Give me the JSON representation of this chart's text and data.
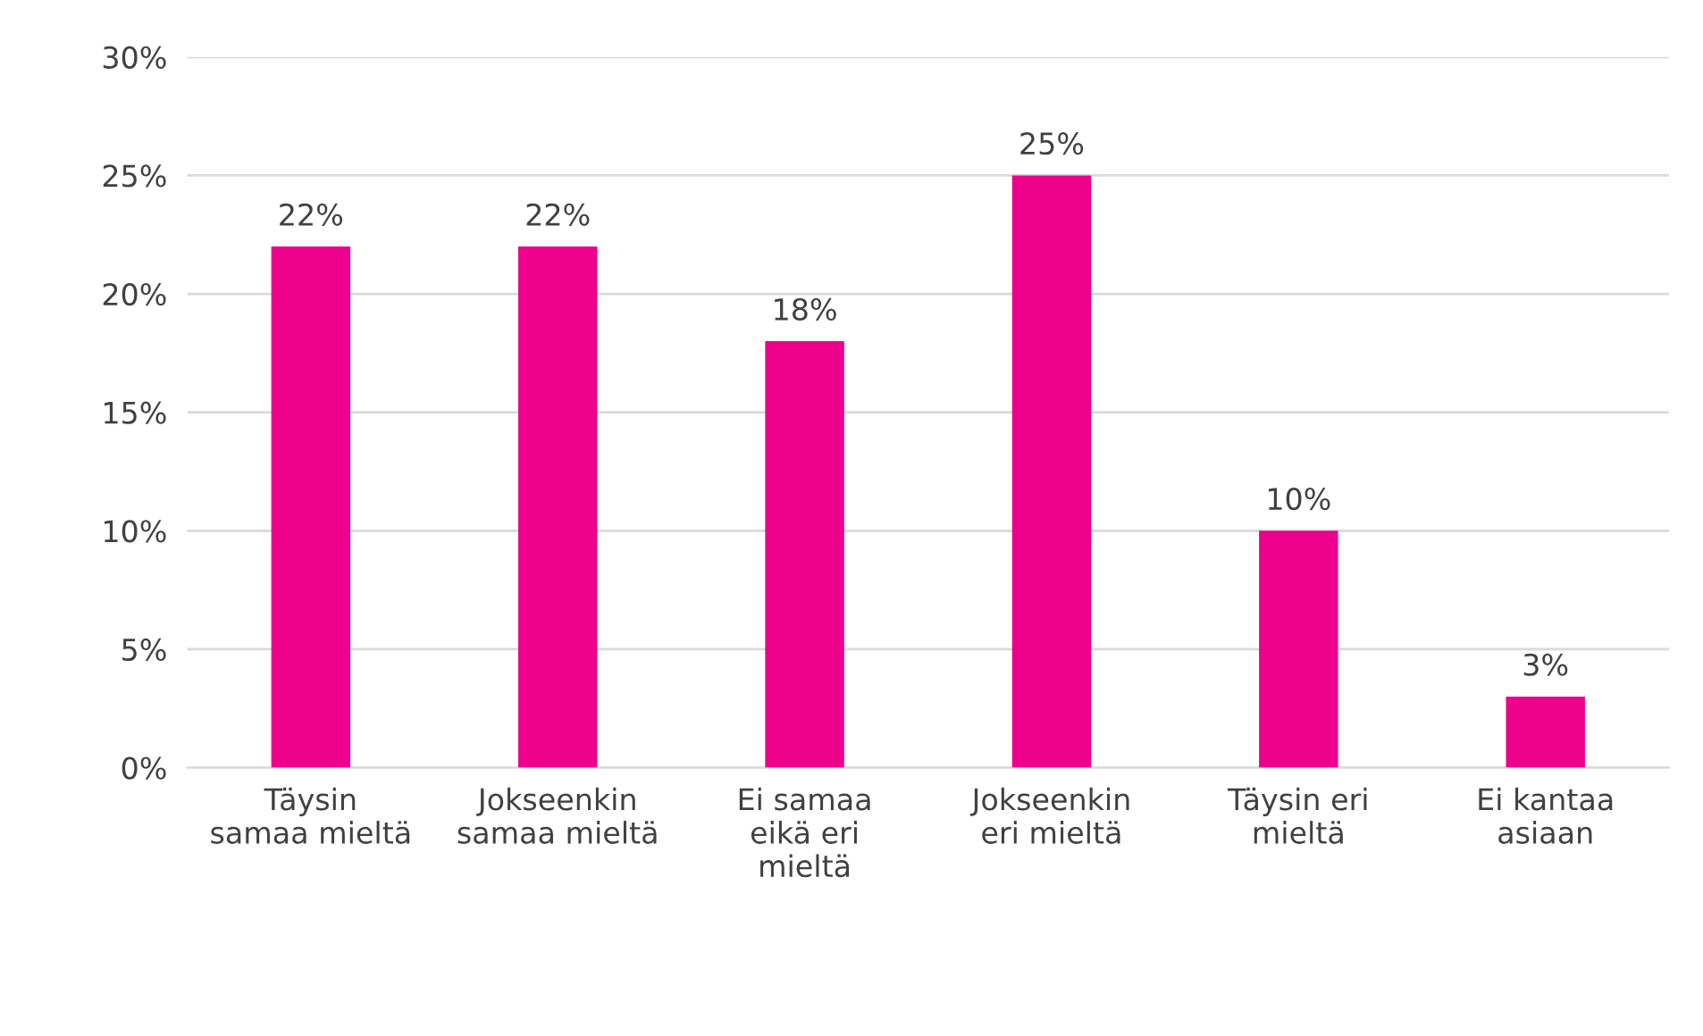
{
  "chart_data": {
    "type": "bar",
    "categories": [
      "Täysin\nsamaa mieltä",
      "Jokseenkin\nsamaa mieltä",
      "Ei samaa\neikä eri\nmieltä",
      "Jokseenkin\neri mieltä",
      "Täysin eri\nmieltä",
      "Ei kantaa\nasiaan"
    ],
    "values": [
      22,
      22,
      18,
      25,
      10,
      3
    ],
    "value_labels": [
      "22%",
      "22%",
      "18%",
      "25%",
      "10%",
      "3%"
    ],
    "color": "#ec008c",
    "ylim": [
      0,
      30
    ],
    "yticks": [
      {
        "value": 0,
        "label": "0%"
      },
      {
        "value": 5,
        "label": "5%"
      },
      {
        "value": 10,
        "label": "10%"
      },
      {
        "value": 15,
        "label": "15%"
      },
      {
        "value": 20,
        "label": "20%"
      },
      {
        "value": 25,
        "label": "25%"
      },
      {
        "value": 30,
        "label": "30%"
      }
    ],
    "grid": "y"
  }
}
